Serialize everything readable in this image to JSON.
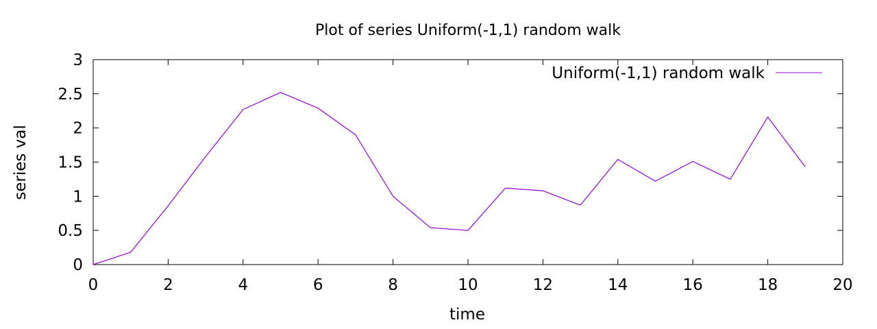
{
  "chart_data": {
    "type": "line",
    "title": "Plot of series Uniform(-1,1) random walk",
    "xlabel": "time",
    "ylabel": "series val",
    "xlim": [
      0,
      20
    ],
    "ylim": [
      0,
      3
    ],
    "x_ticks": [
      "0",
      "2",
      "4",
      "6",
      "8",
      "10",
      "12",
      "14",
      "16",
      "18",
      "20"
    ],
    "y_ticks": [
      "0",
      "0.5",
      "1",
      "1.5",
      "2",
      "2.5",
      "3"
    ],
    "grid": false,
    "legend_position": "top-right",
    "series": [
      {
        "name": "Uniform(-1,1) random walk",
        "color": "#9400d3",
        "x": [
          0,
          1,
          2,
          3,
          4,
          5,
          6,
          7,
          8,
          9,
          10,
          11,
          12,
          13,
          14,
          15,
          16,
          17,
          18,
          19
        ],
        "y": [
          0.0,
          0.18,
          0.86,
          1.58,
          2.27,
          2.52,
          2.29,
          1.9,
          1.0,
          0.54,
          0.5,
          1.12,
          1.08,
          0.87,
          1.54,
          1.22,
          1.51,
          1.25,
          2.16,
          1.43
        ]
      }
    ]
  }
}
